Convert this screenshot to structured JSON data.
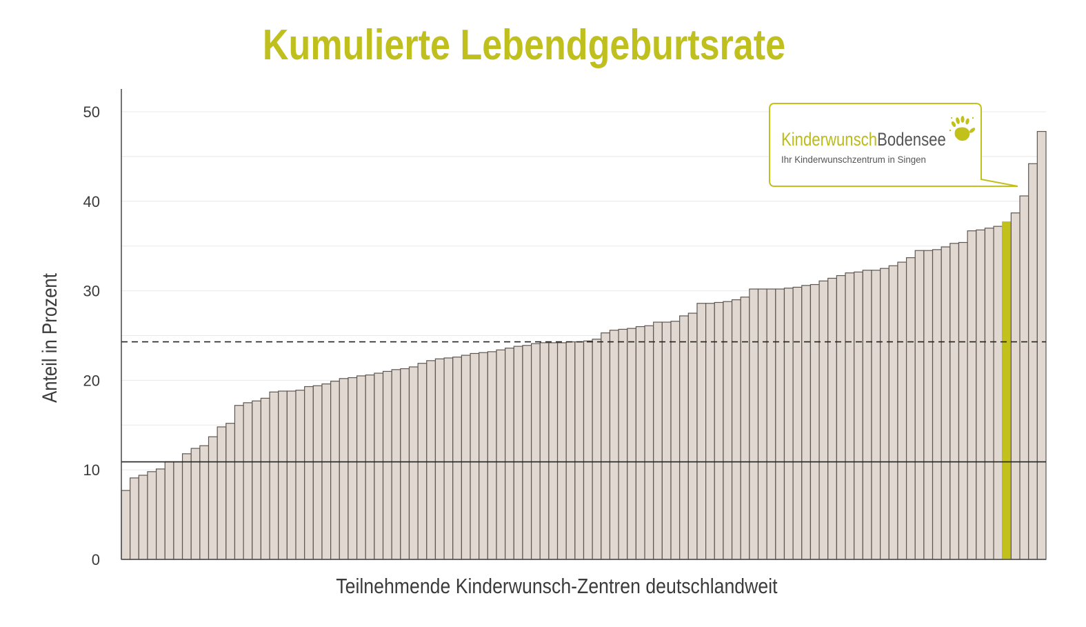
{
  "chart_data": {
    "type": "bar",
    "title": "Kumulierte Lebendgeburtsrate",
    "xlabel": "Teilnehmende Kinderwunsch-Zentren deutschlandweit",
    "ylabel": "Anteil in Prozent",
    "ylim": [
      0,
      50
    ],
    "yticks": [
      "0",
      "10",
      "20",
      "30",
      "40",
      "50"
    ],
    "grid": true,
    "highlight_index": 101,
    "reference_lines": [
      {
        "value": 24.3,
        "style": "dashed"
      },
      {
        "value": 10.9,
        "style": "solid"
      }
    ],
    "values": [
      7.7,
      9.1,
      9.4,
      9.8,
      10.1,
      10.9,
      10.9,
      11.8,
      12.4,
      12.7,
      13.7,
      14.8,
      15.2,
      17.2,
      17.5,
      17.7,
      18.0,
      18.7,
      18.8,
      18.8,
      18.9,
      19.3,
      19.4,
      19.6,
      19.9,
      20.2,
      20.3,
      20.5,
      20.6,
      20.8,
      21.0,
      21.2,
      21.3,
      21.5,
      21.9,
      22.2,
      22.4,
      22.5,
      22.6,
      22.8,
      23.0,
      23.1,
      23.2,
      23.4,
      23.6,
      23.8,
      23.9,
      24.1,
      24.2,
      24.2,
      24.2,
      24.3,
      24.3,
      24.4,
      24.6,
      25.3,
      25.6,
      25.7,
      25.8,
      26.0,
      26.1,
      26.5,
      26.5,
      26.6,
      27.2,
      27.5,
      28.6,
      28.6,
      28.7,
      28.8,
      29.0,
      29.3,
      30.2,
      30.2,
      30.2,
      30.2,
      30.3,
      30.4,
      30.6,
      30.7,
      31.1,
      31.4,
      31.7,
      32.0,
      32.1,
      32.3,
      32.3,
      32.5,
      32.8,
      33.2,
      33.7,
      34.5,
      34.5,
      34.6,
      34.9,
      35.3,
      35.4,
      36.7,
      36.8,
      37.0,
      37.2,
      37.7,
      38.7,
      40.6,
      44.2,
      47.8
    ]
  },
  "colors": {
    "title": "#bfbf1e",
    "bar_fill": "#e0d8d1",
    "bar_stroke": "#5e5550",
    "highlight": "#c2c01a",
    "grid": "#e8e8e8",
    "axis": "#444444",
    "callout_border": "#c2c01a"
  },
  "callout": {
    "brand_part1": "Kinderwunsch",
    "brand_part2": "Bodensee",
    "tagline": "Ihr Kinderwunschzentrum in Singen",
    "logo_icon": "hand-icon"
  }
}
